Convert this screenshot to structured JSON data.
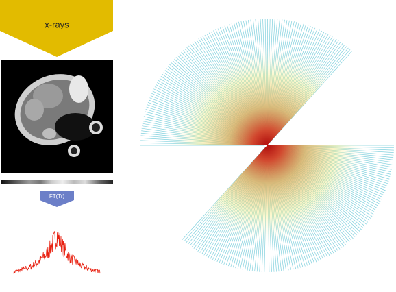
{
  "source_label": "x-rays",
  "transform_label": "FT(Tr)"
}
